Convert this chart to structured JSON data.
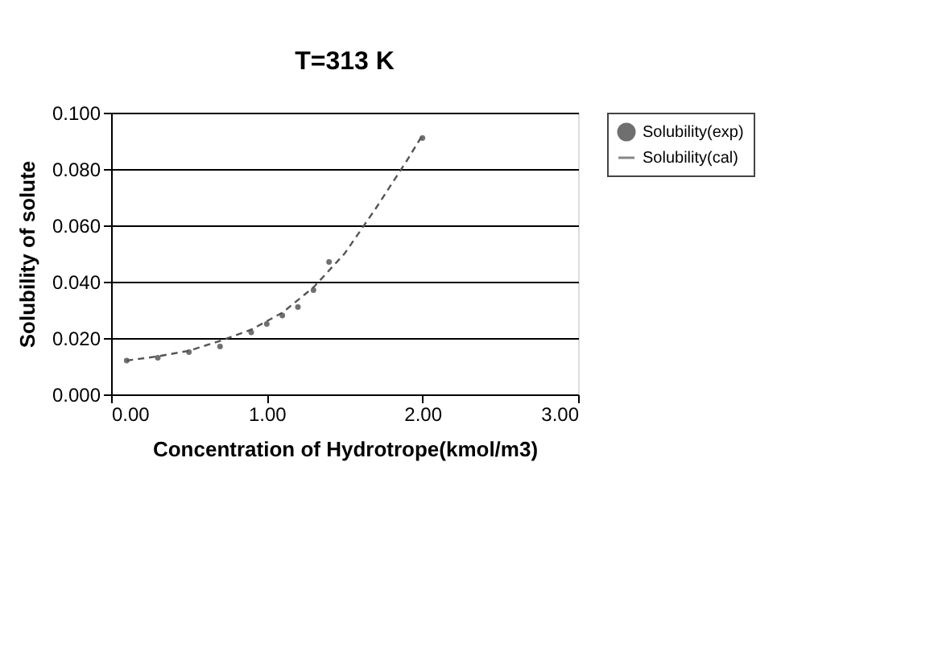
{
  "chart_data": {
    "type": "scatter",
    "title": "T=313 K",
    "xlabel": "Concentration of Hydrotrope(kmol/m3)",
    "ylabel": "Solubility of solute",
    "xlim": [
      0,
      3
    ],
    "xticks": [
      {
        "value": 0,
        "label": "0.00"
      },
      {
        "value": 1,
        "label": "1.00"
      },
      {
        "value": 2,
        "label": "2.00"
      },
      {
        "value": 3,
        "label": "3.00"
      }
    ],
    "ylim": [
      0,
      0.1
    ],
    "yticks": [
      {
        "value": 0,
        "label": "0.000"
      },
      {
        "value": 0.02,
        "label": "0.020"
      },
      {
        "value": 0.04,
        "label": "0.040"
      },
      {
        "value": 0.06,
        "label": "0.060"
      },
      {
        "value": 0.08,
        "label": "0.080"
      },
      {
        "value": 0.1,
        "label": "0.100"
      }
    ],
    "grid": "y",
    "legend": "right",
    "series": [
      {
        "name": "Solubility(exp)",
        "marker": "circle",
        "color": "#333333",
        "x": [
          0.1,
          0.3,
          0.5,
          0.7,
          0.9,
          1.0,
          1.1,
          1.2,
          1.3,
          1.4,
          2.0
        ],
        "values": [
          0.012,
          0.013,
          0.015,
          0.017,
          0.022,
          0.025,
          0.028,
          0.031,
          0.037,
          0.047,
          0.091
        ]
      },
      {
        "name": "Solubility(cal)",
        "type": "line",
        "line_style": "dashed",
        "color": "#555555",
        "x": [
          0.1,
          0.3,
          0.5,
          0.7,
          0.9,
          1.1,
          1.3,
          1.5,
          1.7,
          1.9,
          2.0
        ],
        "values": [
          0.012,
          0.0135,
          0.0155,
          0.019,
          0.023,
          0.029,
          0.038,
          0.05,
          0.066,
          0.083,
          0.092
        ]
      }
    ]
  }
}
